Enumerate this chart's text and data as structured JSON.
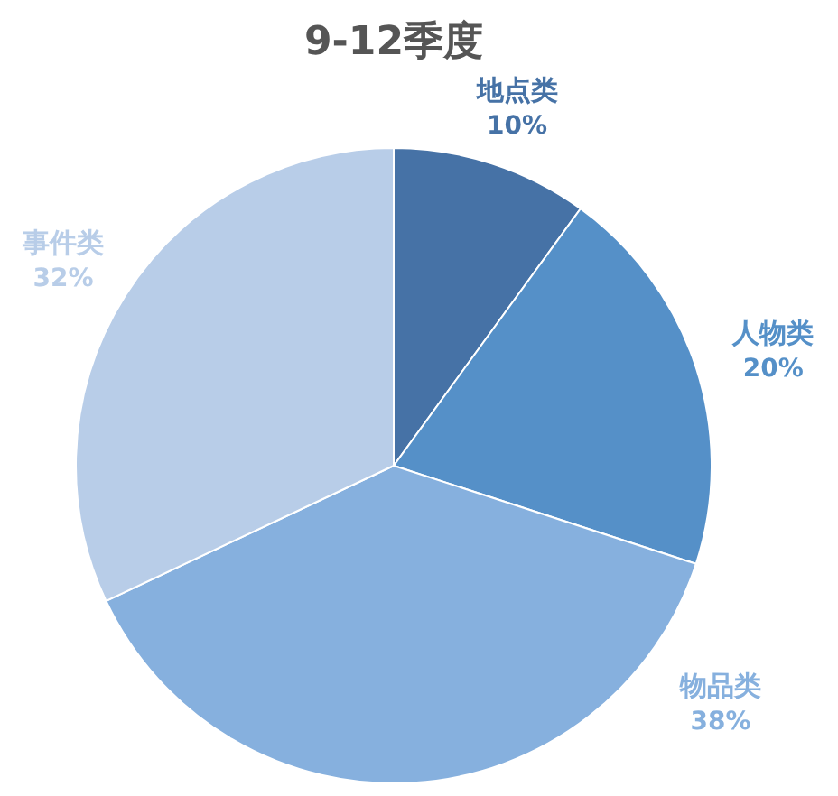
{
  "chart_data": {
    "type": "pie",
    "title": "9-12季度",
    "categories": [
      "地点类",
      "人物类",
      "物品类",
      "事件类"
    ],
    "values": [
      10,
      20,
      38,
      32
    ],
    "value_labels": [
      "10%",
      "20%",
      "38%",
      "32%"
    ],
    "colors": [
      "#4672a6",
      "#5590c8",
      "#86b0de",
      "#b8cde8"
    ]
  }
}
